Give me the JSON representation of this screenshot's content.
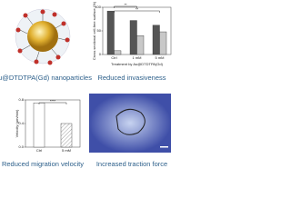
{
  "captions": [
    "Au@DTDTPA(Gd) nanoparticles",
    "Reduced invasiveness",
    "Reduced migration velocity",
    "Increased traction force"
  ],
  "chart_data": [
    {
      "type": "bar",
      "y_label": "Cross sectional cell-free surface (%)",
      "x_label": "Treatment by Au@DTDTPA(Gd)",
      "categories": [
        "Ctrl",
        "1 mM",
        "5 mM"
      ],
      "series": [
        {
          "color": "#555555",
          "values": [
            92,
            72,
            62
          ]
        },
        {
          "color": "#c8c8c8",
          "values": [
            8,
            40,
            48
          ]
        }
      ],
      "ylim": [
        0,
        100
      ],
      "yticks": [
        0,
        50,
        100
      ],
      "annotations": [
        "**",
        "**"
      ]
    },
    {
      "type": "bar",
      "y_label": "Velocity (µm/min)",
      "categories": [
        "Ctrl",
        "5 mM"
      ],
      "values": [
        0.75,
        0.4
      ],
      "colors": [
        "#ffffff",
        "#9a9a9a"
      ],
      "ylim": [
        0,
        0.8
      ],
      "yticks": [
        {
          "value": 0,
          "label": "0.0"
        },
        {
          "value": 0.4,
          "label": "0.4"
        },
        {
          "value": 0.8,
          "label": "0.8"
        }
      ],
      "annotations": [
        "****"
      ]
    }
  ]
}
